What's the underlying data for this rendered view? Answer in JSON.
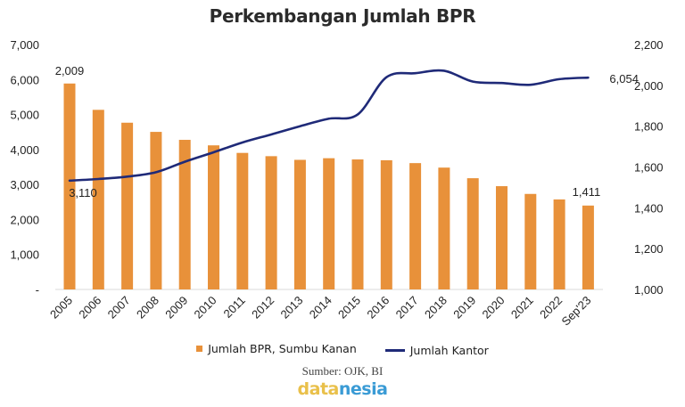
{
  "chart_data": {
    "type": "bar",
    "title": "Perkembangan Jumlah BPR",
    "categories": [
      "2005",
      "2006",
      "2007",
      "2008",
      "2009",
      "2010",
      "2011",
      "2012",
      "2013",
      "2014",
      "2015",
      "2016",
      "2017",
      "2018",
      "2019",
      "2020",
      "2021",
      "2022",
      "Sep'23"
    ],
    "series": [
      {
        "name": "Jumlah BPR, Sumbu Kanan",
        "type": "bar",
        "axis": "right",
        "color": "#E8913A",
        "values": [
          2009,
          1880,
          1817,
          1772,
          1733,
          1706,
          1669,
          1653,
          1635,
          1643,
          1637,
          1633,
          1619,
          1597,
          1545,
          1506,
          1468,
          1441,
          1411
        ]
      },
      {
        "name": "Jumlah Kantor",
        "type": "line",
        "axis": "left",
        "color": "#1F2A78",
        "values": [
          3110,
          3156,
          3224,
          3350,
          3650,
          3920,
          4200,
          4430,
          4665,
          4880,
          5000,
          6065,
          6180,
          6250,
          5940,
          5900,
          5850,
          6010,
          6054
        ]
      }
    ],
    "data_labels": [
      {
        "series": 0,
        "index": 0,
        "text": "2,009"
      },
      {
        "series": 0,
        "index": 18,
        "text": "1,411"
      },
      {
        "series": 1,
        "index": 0,
        "text": "3,110"
      },
      {
        "series": 1,
        "index": 18,
        "text": "6,054"
      }
    ],
    "left_axis": {
      "range": [
        0,
        7000
      ],
      "ticks": [
        "-",
        "1,000",
        "2,000",
        "3,000",
        "4,000",
        "5,000",
        "6,000",
        "7,000"
      ]
    },
    "right_axis": {
      "range": [
        1000,
        2200
      ],
      "ticks": [
        "1,000",
        "1,200",
        "1,400",
        "1,600",
        "1,800",
        "2,000",
        "2,200"
      ]
    },
    "grid": false,
    "legend": "bottom"
  },
  "source": "Sumber: OJK, BI",
  "logo": {
    "part1": "data",
    "part2": "nesia",
    "color1": "#E9C04A",
    "color2": "#3A9BD5"
  }
}
